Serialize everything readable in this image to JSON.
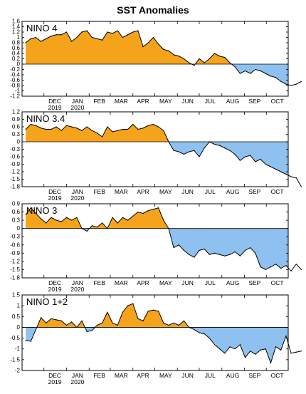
{
  "title": "SST Anomalies",
  "colors": {
    "positive": "#f5a31a",
    "negative": "#8ec1ef",
    "line": "#000000"
  },
  "month_ticks": [
    "DEC",
    "JAN",
    "FEB",
    "MAR",
    "APR",
    "MAY",
    "JUN",
    "JUL",
    "AUG",
    "SEP",
    "OCT"
  ],
  "year_ticks": [
    {
      "month": "DEC",
      "year": "2019"
    },
    {
      "month": "JAN",
      "year": "2020"
    }
  ],
  "chart_data": [
    {
      "type": "area",
      "name": "NINO 4",
      "week_start": "2019-11-06",
      "ylim": [
        -1.2,
        1.6
      ],
      "yticks": [
        "1.6",
        "1.4",
        "1.2",
        "1",
        "0.8",
        "0.6",
        "0.4",
        "0.2",
        "0",
        "-0.2",
        "-0.4",
        "-0.6",
        "-0.8",
        "-1",
        "-1.2"
      ],
      "values": [
        0.8,
        0.95,
        1.0,
        0.85,
        0.95,
        1.05,
        1.1,
        1.1,
        1.2,
        0.85,
        1.0,
        1.2,
        1.25,
        1.0,
        0.95,
        0.9,
        1.2,
        1.15,
        1.25,
        1.0,
        1.1,
        1.2,
        1.25,
        0.65,
        0.8,
        1.0,
        0.75,
        0.55,
        0.5,
        0.35,
        0.3,
        0.2,
        0.05,
        -0.05,
        0.2,
        0.05,
        0.2,
        0.4,
        0.3,
        0.25,
        0.05,
        -0.1,
        -0.35,
        -0.25,
        -0.35,
        -0.2,
        -0.25,
        -0.35,
        -0.45,
        -0.5,
        -0.65,
        -0.75,
        -0.8,
        -0.75,
        -0.65
      ]
    },
    {
      "type": "area",
      "name": "NINO 3.4",
      "week_start": "2019-11-06",
      "ylim": [
        -1.8,
        1.2
      ],
      "yticks": [
        "1.2",
        "0.9",
        "0.6",
        "0.3",
        "0",
        "-0.3",
        "-0.6",
        "-0.9",
        "-1.2",
        "-1.5",
        "-1.8"
      ],
      "values": [
        0.5,
        0.7,
        0.65,
        0.55,
        0.5,
        0.5,
        0.6,
        0.45,
        0.65,
        0.6,
        0.55,
        0.45,
        0.6,
        0.45,
        0.35,
        0.2,
        0.6,
        0.4,
        0.45,
        0.5,
        0.5,
        0.7,
        0.5,
        0.55,
        0.65,
        0.7,
        0.6,
        0.45,
        0.0,
        -0.35,
        -0.4,
        -0.5,
        -0.4,
        -0.35,
        -0.6,
        -0.25,
        0.0,
        -0.1,
        -0.15,
        -0.25,
        -0.35,
        -0.5,
        -0.75,
        -0.6,
        -0.55,
        -0.8,
        -0.7,
        -0.9,
        -1.0,
        -1.1,
        -1.2,
        -1.3,
        -1.4,
        -1.45,
        -1.8
      ]
    },
    {
      "type": "area",
      "name": "NINO 3",
      "week_start": "2019-11-06",
      "ylim": [
        -1.8,
        0.9
      ],
      "yticks": [
        "0.9",
        "0.6",
        "0.3",
        "0",
        "-0.3",
        "-0.6",
        "-0.9",
        "-1.2",
        "-1.5",
        "-1.8"
      ],
      "values": [
        0.5,
        0.75,
        0.55,
        0.35,
        0.2,
        0.4,
        0.3,
        0.25,
        0.4,
        0.3,
        0.4,
        0.0,
        -0.1,
        0.1,
        0.05,
        0.2,
        0.0,
        0.4,
        0.2,
        0.4,
        0.3,
        0.45,
        0.6,
        0.55,
        0.65,
        0.7,
        0.75,
        0.3,
        0.0,
        -0.7,
        -0.6,
        -0.8,
        -0.95,
        -1.05,
        -0.8,
        -0.75,
        -0.95,
        -0.9,
        -0.95,
        -1.0,
        -0.95,
        -0.85,
        -1.0,
        -0.8,
        -0.7,
        -0.9,
        -1.4,
        -1.5,
        -1.4,
        -1.3,
        -1.45,
        -1.35,
        -1.55,
        -1.3,
        -1.5
      ]
    },
    {
      "type": "area",
      "name": "NINO 1+2",
      "week_start": "2019-11-06",
      "ylim": [
        -2,
        1.5
      ],
      "yticks": [
        "1.5",
        "1",
        "0.5",
        "0",
        "-0.5",
        "-1",
        "-1.5",
        "-2"
      ],
      "values": [
        -0.6,
        -0.65,
        -0.1,
        0.45,
        0.2,
        0.4,
        0.35,
        0.3,
        0.1,
        0.25,
        0.0,
        0.3,
        -0.2,
        -0.15,
        0.1,
        0.2,
        0.7,
        0.2,
        0.1,
        0.7,
        1.0,
        1.1,
        0.4,
        0.3,
        0.75,
        0.8,
        0.75,
        0.2,
        0.1,
        0.2,
        0.1,
        0.3,
        0.0,
        -0.1,
        -0.25,
        -0.3,
        -0.5,
        -0.8,
        -1.0,
        -1.2,
        -0.9,
        -1.0,
        -0.8,
        -1.4,
        -1.1,
        -1.25,
        -1.05,
        -1.0,
        -1.65,
        -0.9,
        -1.05,
        -0.4,
        -1.2,
        -1.15,
        -1.1
      ]
    }
  ]
}
